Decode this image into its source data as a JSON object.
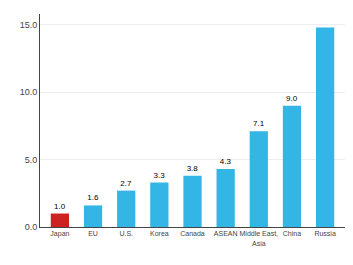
{
  "chart_data": {
    "type": "bar",
    "categories": [
      "Japan",
      "EU",
      "U.S.",
      "Korea",
      "Canada",
      "ASEAN",
      "Middle East,\nAsia",
      "China",
      "Russia"
    ],
    "values": [
      1.0,
      1.6,
      2.7,
      3.3,
      3.8,
      4.3,
      7.1,
      9.0,
      14.8
    ],
    "colors": [
      "#cc2222",
      "#33b5e5",
      "#33b5e5",
      "#33b5e5",
      "#33b5e5",
      "#33b5e5",
      "#33b5e5",
      "#33b5e5",
      "#33b5e5"
    ],
    "data_labels": true,
    "value_labels": [
      "1.0",
      "1.6",
      "2.7",
      "3.3",
      "3.8",
      "4.3",
      "7.1",
      "9.0",
      null
    ],
    "ylim": [
      0,
      15.8
    ],
    "yticks": [
      {
        "value": 0.0,
        "label": "0.0"
      },
      {
        "value": 5.0,
        "label": "5.0"
      },
      {
        "value": 10.0,
        "label": "10.0"
      },
      {
        "value": 15.0,
        "label": "15.0"
      }
    ],
    "grid": true
  }
}
